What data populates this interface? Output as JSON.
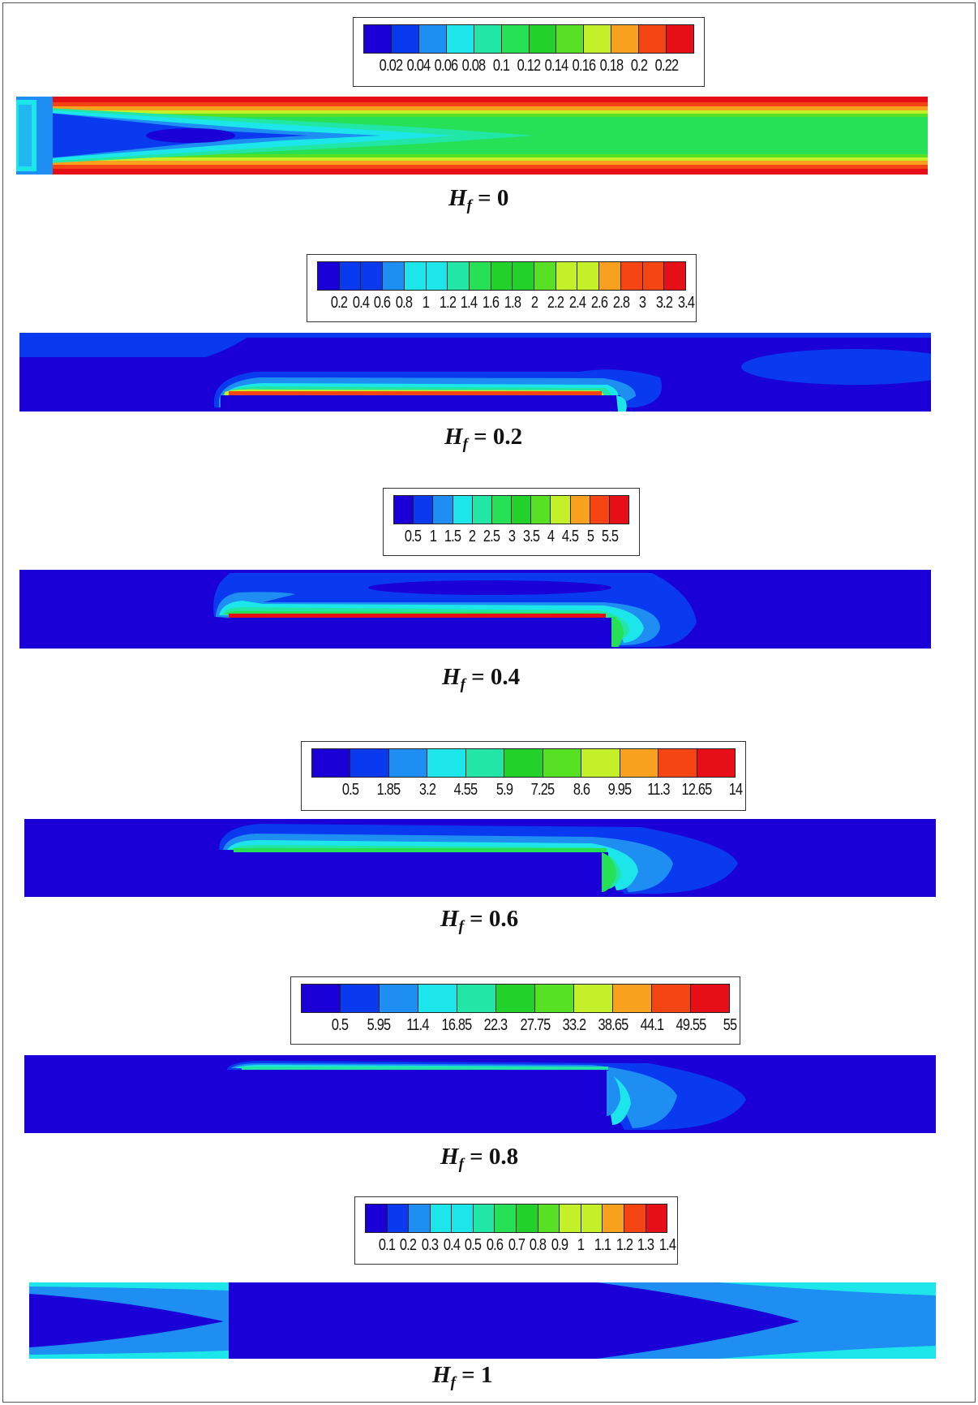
{
  "colormap": [
    "#1a00d6",
    "#0a3af0",
    "#1e8ef2",
    "#1de6ea",
    "#22e6a6",
    "#26e055",
    "#22d22a",
    "#58e025",
    "#c4f02a",
    "#f8a11e",
    "#f44414",
    "#e60f18"
  ],
  "panels": [
    {
      "caption_var": "H",
      "caption_sub": "f",
      "caption_value": "= 0",
      "ticks": [
        "0.02",
        "0.04",
        "0.06",
        "0.08",
        "0.1",
        "0.12",
        "0.14",
        "0.16",
        "0.18",
        "0.2",
        "0.22"
      ]
    },
    {
      "caption_var": "H",
      "caption_sub": "f",
      "caption_value": "= 0.2",
      "ticks": [
        "0.2",
        "0.4",
        "0.6",
        "0.8",
        "1",
        "1.2",
        "1.4",
        "1.6",
        "1.8",
        "2",
        "2.2",
        "2.4",
        "2.6",
        "2.8",
        "3",
        "3.2",
        "3.4"
      ]
    },
    {
      "caption_var": "H",
      "caption_sub": "f",
      "caption_value": "= 0.4",
      "ticks": [
        "0.5",
        "1",
        "1.5",
        "2",
        "2.5",
        "3",
        "3.5",
        "4",
        "4.5",
        "5",
        "5.5"
      ]
    },
    {
      "caption_var": "H",
      "caption_sub": "f",
      "caption_value": "= 0.6",
      "ticks": [
        "0.5",
        "1.85",
        "3.2",
        "4.55",
        "5.9",
        "7.25",
        "8.6",
        "9.95",
        "11.3",
        "12.65",
        "14"
      ]
    },
    {
      "caption_var": "H",
      "caption_sub": "f",
      "caption_value": "= 0.8",
      "ticks": [
        "0.5",
        "5.95",
        "11.4",
        "16.85",
        "22.3",
        "27.75",
        "33.2",
        "38.65",
        "44.1",
        "49.55",
        "55"
      ]
    },
    {
      "caption_var": "H",
      "caption_sub": "f",
      "caption_value": "= 1",
      "ticks": [
        "0.1",
        "0.2",
        "0.3",
        "0.4",
        "0.5",
        "0.6",
        "0.7",
        "0.8",
        "0.9",
        "1",
        "1.1",
        "1.2",
        "1.3",
        "1.4"
      ]
    }
  ]
}
